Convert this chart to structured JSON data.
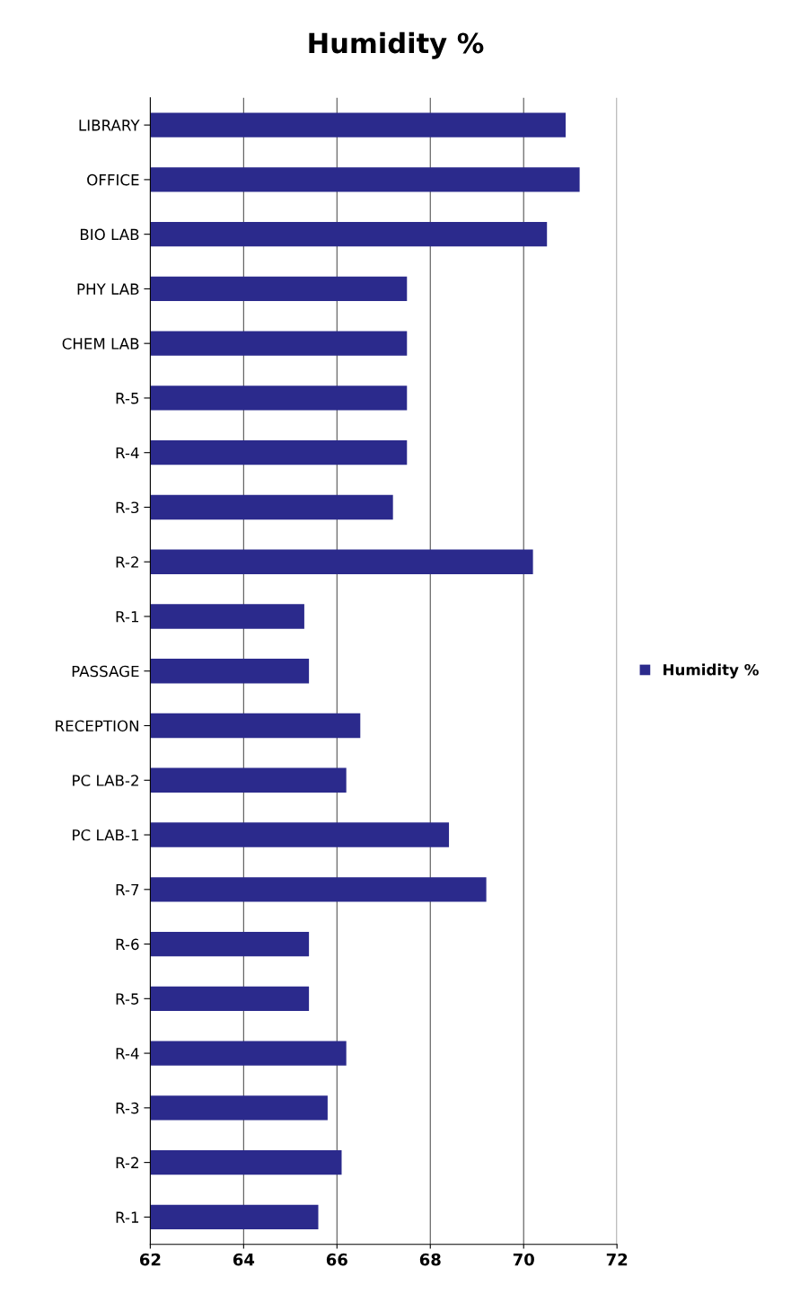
{
  "chart_data": {
    "type": "bar",
    "orientation": "horizontal",
    "title": "Humidity %",
    "categories": [
      "LIBRARY",
      "OFFICE",
      "BIO LAB",
      "PHY LAB",
      "CHEM LAB",
      "R-5",
      "R-4",
      "R-3",
      "R-2",
      "R-1",
      "PASSAGE",
      "RECEPTION",
      "PC LAB-2",
      "PC LAB-1",
      "R-7",
      "R-6",
      "R-5",
      "R-4",
      "R-3",
      "R-2",
      "R-1"
    ],
    "series": [
      {
        "name": "Humidity %",
        "color": "#2b2a8c",
        "values": [
          70.9,
          71.2,
          70.5,
          67.5,
          67.5,
          67.5,
          67.5,
          67.2,
          70.2,
          65.3,
          65.4,
          66.5,
          66.2,
          68.4,
          69.2,
          65.4,
          65.4,
          66.2,
          65.8,
          66.1,
          65.6
        ]
      }
    ],
    "xlim": [
      62,
      72
    ],
    "xticks": [
      62,
      64,
      66,
      68,
      70,
      72
    ],
    "grid": "x",
    "legend": "right"
  }
}
